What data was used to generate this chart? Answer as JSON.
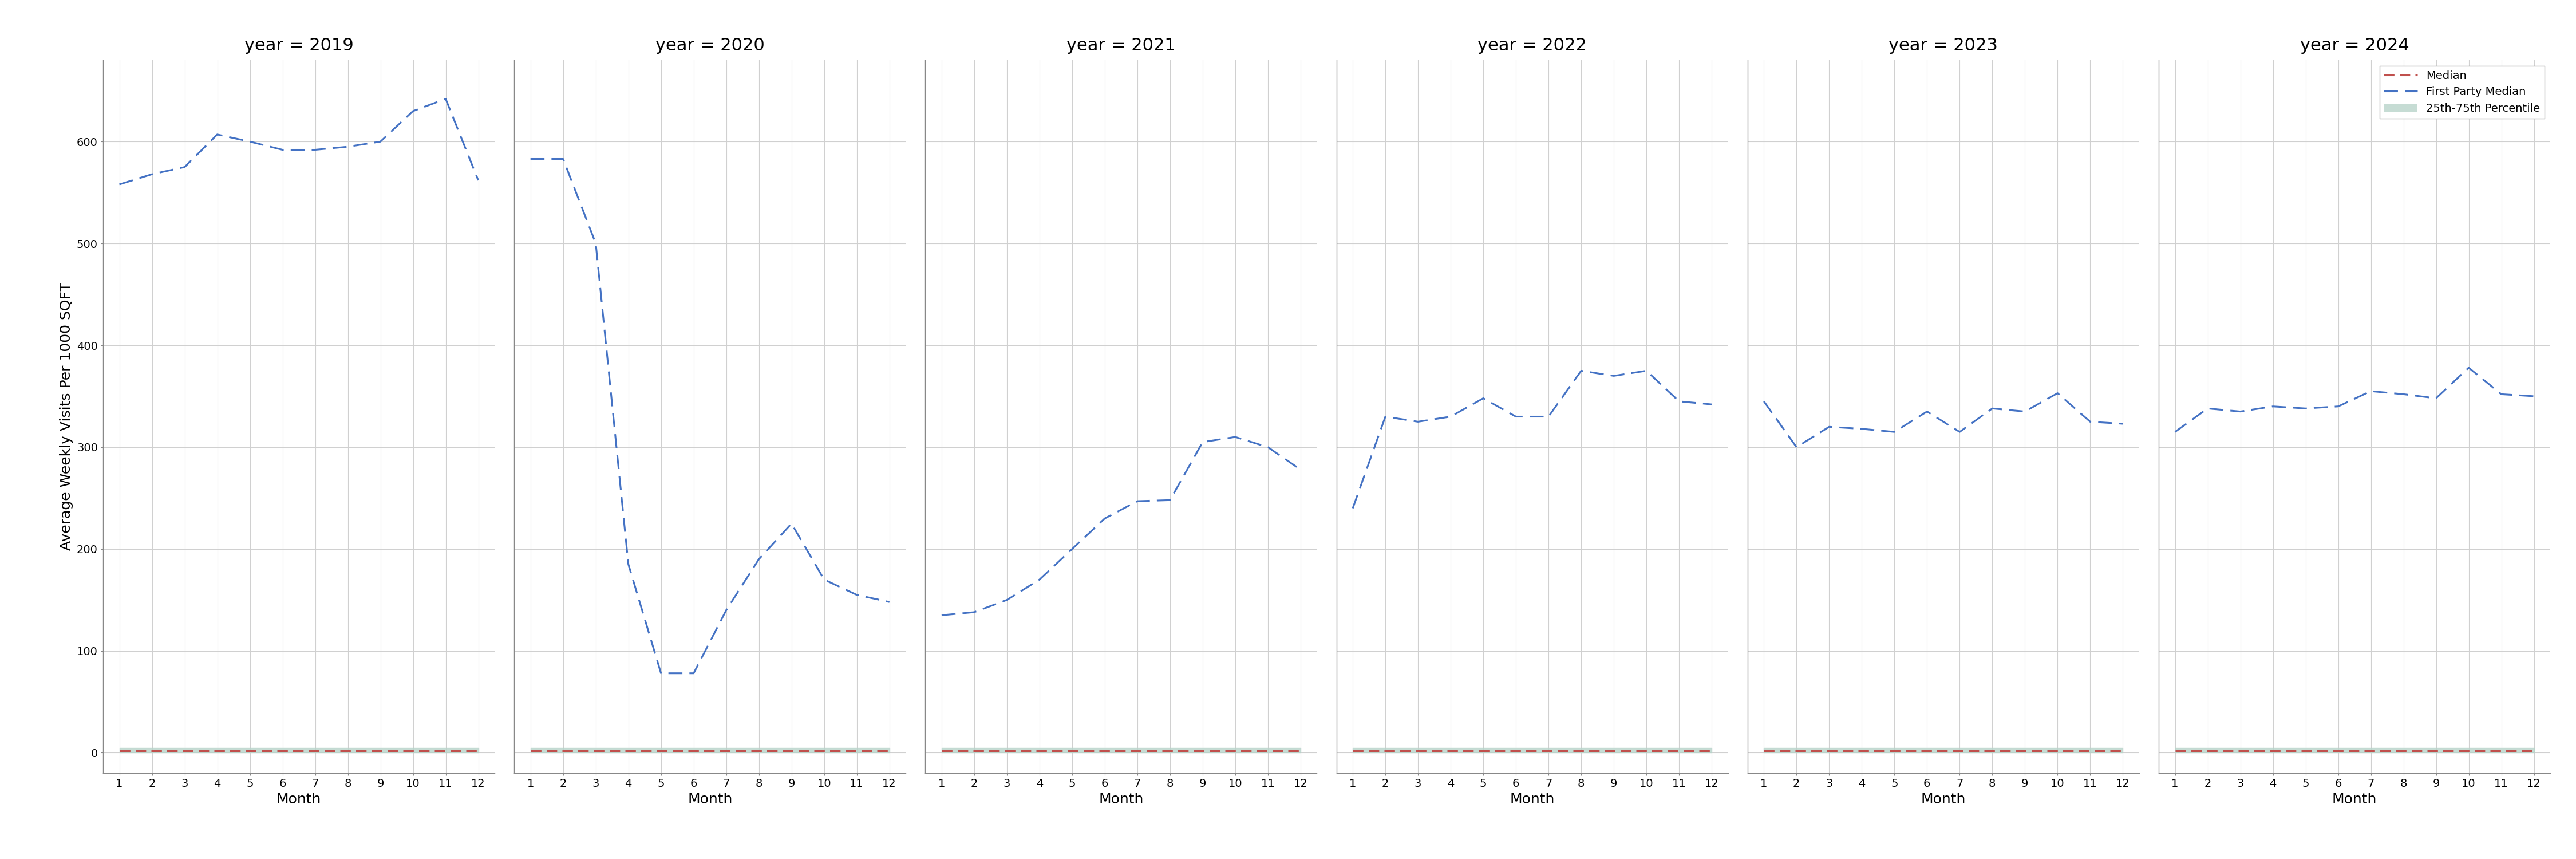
{
  "years": [
    2019,
    2020,
    2021,
    2022,
    2023,
    2024
  ],
  "months": [
    1,
    2,
    3,
    4,
    5,
    6,
    7,
    8,
    9,
    10,
    11,
    12
  ],
  "first_party_median": {
    "2019": [
      558,
      568,
      575,
      607,
      600,
      592,
      592,
      595,
      600,
      630,
      642,
      562
    ],
    "2020": [
      583,
      583,
      500,
      185,
      78,
      78,
      140,
      190,
      225,
      170,
      155,
      148
    ],
    "2021": [
      135,
      138,
      150,
      170,
      200,
      230,
      247,
      248,
      305,
      310,
      300,
      278
    ],
    "2022": [
      240,
      330,
      325,
      330,
      348,
      330,
      330,
      375,
      370,
      375,
      345,
      342
    ],
    "2023": [
      345,
      300,
      320,
      318,
      315,
      335,
      315,
      338,
      335,
      353,
      325,
      323
    ],
    "2024": [
      315,
      338,
      335,
      340,
      338,
      340,
      355,
      352,
      348,
      378,
      352,
      350
    ]
  },
  "median": {
    "2019": [
      2,
      2,
      2,
      2,
      2,
      2,
      2,
      2,
      2,
      2,
      2,
      2
    ],
    "2020": [
      2,
      2,
      2,
      2,
      2,
      2,
      2,
      2,
      2,
      2,
      2,
      2
    ],
    "2021": [
      2,
      2,
      2,
      2,
      2,
      2,
      2,
      2,
      2,
      2,
      2,
      2
    ],
    "2022": [
      2,
      2,
      2,
      2,
      2,
      2,
      2,
      2,
      2,
      2,
      2,
      2
    ],
    "2023": [
      2,
      2,
      2,
      2,
      2,
      2,
      2,
      2,
      2,
      2,
      2,
      2
    ],
    "2024": [
      2,
      2,
      2,
      2,
      2,
      2,
      2,
      2,
      2,
      2,
      2,
      2
    ]
  },
  "percentile_25": {
    "2019": [
      0,
      0,
      0,
      0,
      0,
      0,
      0,
      0,
      0,
      0,
      0,
      0
    ],
    "2020": [
      0,
      0,
      0,
      0,
      0,
      0,
      0,
      0,
      0,
      0,
      0,
      0
    ],
    "2021": [
      0,
      0,
      0,
      0,
      0,
      0,
      0,
      0,
      0,
      0,
      0,
      0
    ],
    "2022": [
      0,
      0,
      0,
      0,
      0,
      0,
      0,
      0,
      0,
      0,
      0,
      0
    ],
    "2023": [
      0,
      0,
      0,
      0,
      0,
      0,
      0,
      0,
      0,
      0,
      0,
      0
    ],
    "2024": [
      0,
      0,
      0,
      0,
      0,
      0,
      0,
      0,
      0,
      0,
      0,
      0
    ]
  },
  "percentile_75": {
    "2019": [
      5,
      5,
      5,
      5,
      5,
      5,
      5,
      5,
      5,
      5,
      5,
      5
    ],
    "2020": [
      5,
      5,
      5,
      5,
      5,
      5,
      5,
      5,
      5,
      5,
      5,
      5
    ],
    "2021": [
      5,
      5,
      5,
      5,
      5,
      5,
      5,
      5,
      5,
      5,
      5,
      5
    ],
    "2022": [
      5,
      5,
      5,
      5,
      5,
      5,
      5,
      5,
      5,
      5,
      5,
      5
    ],
    "2023": [
      5,
      5,
      5,
      5,
      5,
      5,
      5,
      5,
      5,
      5,
      5,
      5
    ],
    "2024": [
      5,
      5,
      5,
      5,
      5,
      5,
      5,
      5,
      5,
      5,
      5,
      5
    ]
  },
  "ylim": [
    -20,
    680
  ],
  "yticks": [
    0,
    100,
    200,
    300,
    400,
    500,
    600
  ],
  "xlabel": "Month",
  "ylabel": "Average Weekly Visits Per 1000 SQFT",
  "legend_labels": [
    "Median",
    "First Party Median",
    "25th-75th Percentile"
  ],
  "blue_color": "#4472C4",
  "red_color": "#C0504D",
  "fill_color": "#B8D4CA",
  "background_color": "white",
  "figure_bg": "white",
  "grid_color": "#D0D0D0",
  "spine_color": "#888888"
}
